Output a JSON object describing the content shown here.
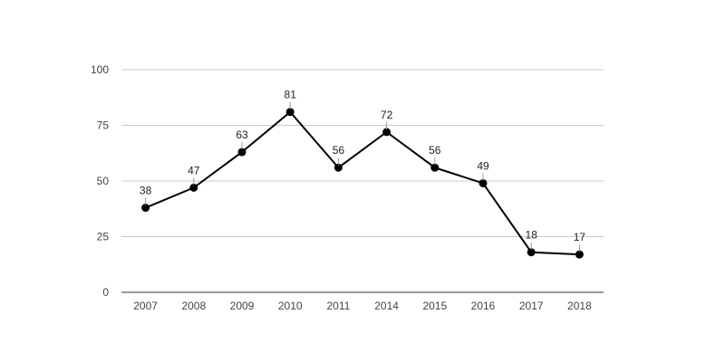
{
  "chart_data": {
    "type": "line",
    "title": "",
    "xlabel": "",
    "ylabel": "",
    "categories": [
      "2007",
      "2008",
      "2009",
      "2010",
      "2011",
      "2014",
      "2015",
      "2016",
      "2017",
      "2018"
    ],
    "series": [
      {
        "values": [
          38,
          47,
          63,
          81,
          56,
          72,
          56,
          49,
          18,
          17
        ]
      }
    ],
    "ylim": [
      0,
      100
    ],
    "yticks": [
      0,
      25,
      50,
      75,
      100
    ],
    "grid": true,
    "legend": "none",
    "data_labels": true,
    "colors": {
      "line": "#000000",
      "marker": "#000000",
      "grid": "#cccccc",
      "axis": "#333333",
      "leader": "#999999"
    }
  }
}
